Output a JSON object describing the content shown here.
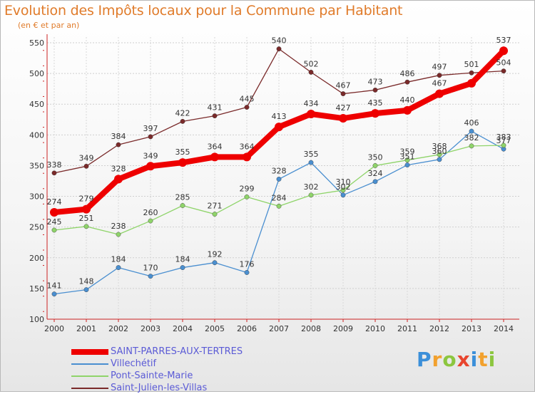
{
  "header": {
    "title": "Evolution des Impôts locaux pour la Commune par Habitant",
    "subtitle": "(en € et par an)"
  },
  "logo": {
    "text": "Proxiti",
    "colors": [
      "#3b8fd9",
      "#f2a12e",
      "#8cc63f",
      "#e8452e"
    ]
  },
  "chart_data": {
    "type": "line",
    "x": [
      "2000",
      "2001",
      "2002",
      "2003",
      "2004",
      "2005",
      "2006",
      "2007",
      "2008",
      "2009",
      "2010",
      "2011",
      "2012",
      "2013",
      "2014"
    ],
    "ylim": [
      100,
      550
    ],
    "yticks": [
      100,
      150,
      200,
      250,
      300,
      350,
      400,
      450,
      500,
      550
    ],
    "grid": true,
    "legend_position": "bottom-left",
    "series": [
      {
        "name": "SAINT-PARRES-AUX-TERTRES",
        "color": "#ee0000",
        "emphasis": true,
        "values": [
          274,
          279,
          328,
          349,
          355,
          364,
          364,
          413,
          434,
          427,
          435,
          440,
          467,
          484,
          537
        ],
        "labels": [
          "274",
          "279",
          "328",
          "349",
          "355",
          "364",
          "364",
          "413",
          "434",
          "427",
          "435",
          "440",
          "467",
          "",
          "537"
        ]
      },
      {
        "name": "Villechétif",
        "color": "#4a8fd0",
        "emphasis": false,
        "values": [
          141,
          148,
          184,
          170,
          184,
          192,
          176,
          328,
          355,
          302,
          324,
          351,
          360,
          406,
          377
        ],
        "labels": [
          "141",
          "148",
          "184",
          "170",
          "184",
          "192",
          "176",
          "328",
          "355",
          "302",
          "324",
          "351",
          "360",
          "406",
          "377"
        ]
      },
      {
        "name": "Pont-Sainte-Marie",
        "color": "#8fd46a",
        "emphasis": false,
        "values": [
          245,
          251,
          238,
          260,
          285,
          271,
          299,
          284,
          302,
          310,
          350,
          359,
          368,
          382,
          383
        ],
        "labels": [
          "245",
          "251",
          "238",
          "260",
          "285",
          "271",
          "299",
          "284",
          "302",
          "310",
          "350",
          "359",
          "368",
          "382",
          "383"
        ]
      },
      {
        "name": "Saint-Julien-les-Villas",
        "color": "#7a2a2a",
        "emphasis": false,
        "values": [
          338,
          349,
          384,
          397,
          422,
          431,
          445,
          540,
          502,
          467,
          473,
          486,
          497,
          501,
          504
        ],
        "labels": [
          "338",
          "349",
          "384",
          "397",
          "422",
          "431",
          "445",
          "540",
          "502",
          "467",
          "473",
          "486",
          "497",
          "501",
          "504"
        ]
      }
    ]
  }
}
